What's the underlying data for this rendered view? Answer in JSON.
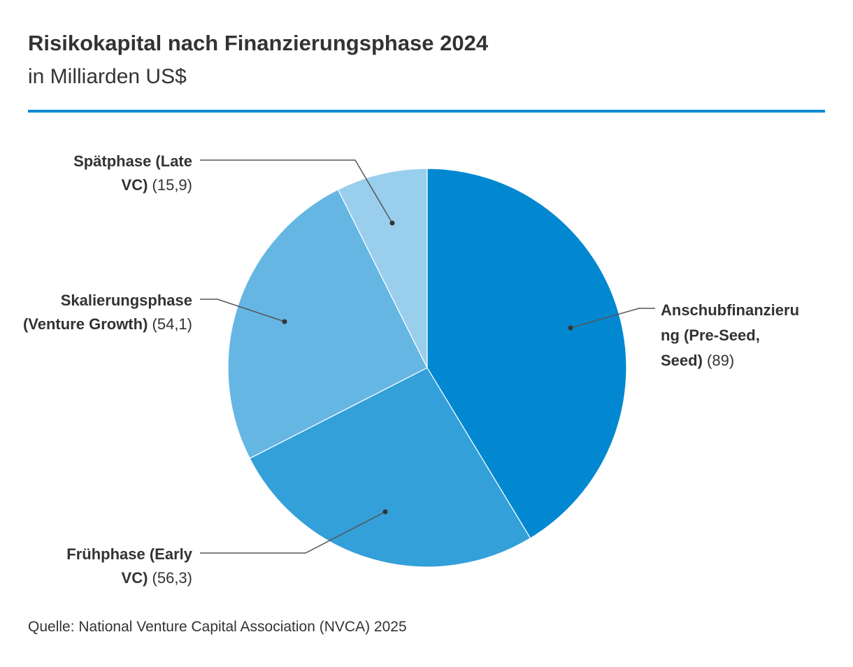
{
  "header": {
    "title": "Risikokapital nach Finanzierungsphase 2024",
    "subtitle": "in Milliarden US$"
  },
  "footer": {
    "source": "Quelle: National Venture Capital Association (NVCA) 2025"
  },
  "colors": {
    "accent_rule": "#0a8bd6",
    "text": "#333333",
    "leader_line": "#555555"
  },
  "chart_data": {
    "type": "pie",
    "title": "Risikokapital nach Finanzierungsphase 2024",
    "subtitle": "in Milliarden US$",
    "start": "12 o'clock",
    "direction": "clockwise",
    "slices": [
      {
        "label": "Anschubfinanzierung (Pre-Seed, Seed)",
        "label_lines": [
          "Anschubfinanzieru",
          "ng (Pre-Seed,",
          "Seed)"
        ],
        "value": 89,
        "value_text": "(89)",
        "color": "#0288d1"
      },
      {
        "label": "Frühphase (Early VC)",
        "label_lines": [
          "Frühphase (Early",
          "VC)"
        ],
        "value": 56.3,
        "value_text": "(56,3)",
        "color": "#33a0da"
      },
      {
        "label": "Skalierungsphase (Venture Growth)",
        "label_lines": [
          "Skalierungsphase",
          "(Venture Growth)"
        ],
        "value": 54.1,
        "value_text": "(54,1)",
        "color": "#66b6e4"
      },
      {
        "label": "Spätphase (Late VC)",
        "label_lines": [
          "Spätphase (Late",
          "VC)"
        ],
        "value": 15.9,
        "value_text": "(15,9)",
        "color": "#99cfed"
      }
    ]
  }
}
